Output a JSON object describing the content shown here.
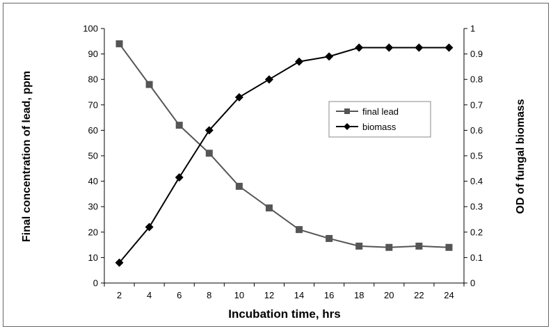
{
  "chart_data": {
    "type": "line",
    "title": "",
    "xlabel": "Incubation time, hrs",
    "ylabel_left": "Final concentration of lead, ppm",
    "ylabel_right": "OD of fungal biomass",
    "x": [
      2,
      4,
      6,
      8,
      10,
      12,
      14,
      16,
      18,
      20,
      22,
      24
    ],
    "ylim_left": [
      0,
      100
    ],
    "ylim_right": [
      0,
      1
    ],
    "yticks_left": [
      "0",
      "10",
      "20",
      "30",
      "40",
      "50",
      "60",
      "70",
      "80",
      "90",
      "100"
    ],
    "yticks_right": [
      "0",
      "0.1",
      "0.2",
      "0.3",
      "0.4",
      "0.5",
      "0.6",
      "0.7",
      "0.8",
      "0.9",
      "1"
    ],
    "grid": false,
    "legend_position": "right-center",
    "series": [
      {
        "name": "final lead",
        "axis": "left",
        "marker": "square",
        "color": "#555555",
        "values": [
          94,
          78,
          62,
          51,
          38,
          29.5,
          21,
          17.5,
          14.5,
          14,
          14.5,
          14
        ]
      },
      {
        "name": "biomass",
        "axis": "right",
        "marker": "diamond",
        "color": "#000000",
        "values": [
          0.08,
          0.22,
          0.415,
          0.6,
          0.73,
          0.8,
          0.87,
          0.89,
          0.925,
          0.925,
          0.925,
          0.925
        ]
      }
    ]
  }
}
